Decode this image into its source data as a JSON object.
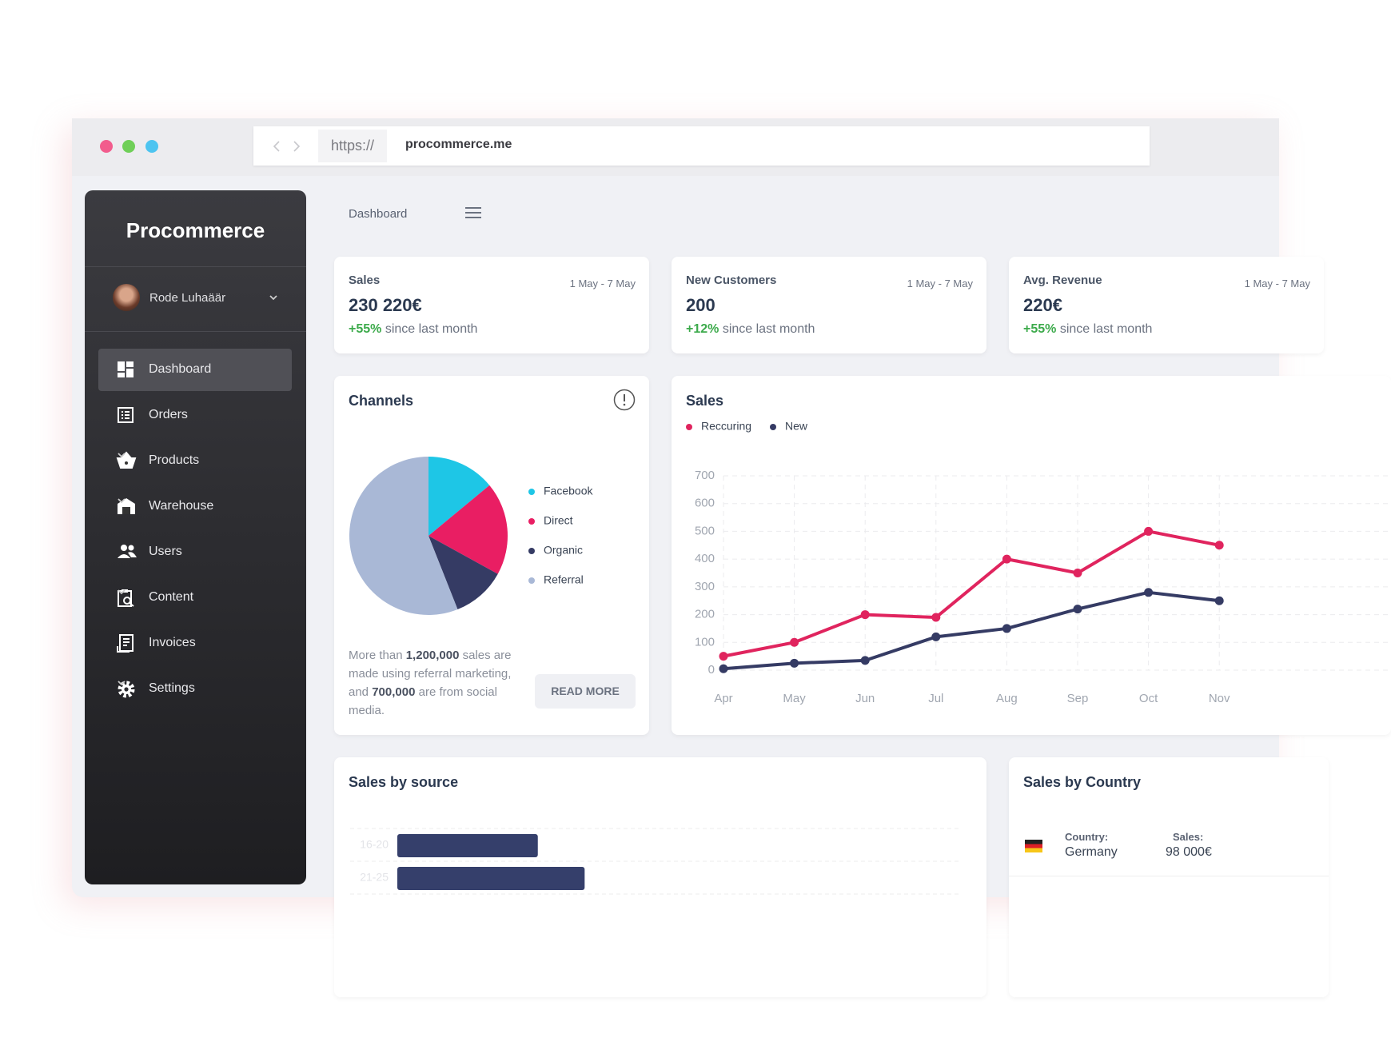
{
  "browser": {
    "protocol": "https://",
    "url": "procommerce.me"
  },
  "sidebar": {
    "brand": "Procommerce",
    "user": "Rode Luhaäär",
    "menu": [
      "Dashboard",
      "Orders",
      "Products",
      "Warehouse",
      "Users",
      "Content",
      "Invoices",
      "Settings"
    ]
  },
  "header": {
    "breadcrumb": "Dashboard"
  },
  "stats": [
    {
      "label": "Sales",
      "date": "1 May - 7 May",
      "value": "230 220€",
      "change": "+55%",
      "note": "since last month"
    },
    {
      "label": "New Customers",
      "date": "1 May - 7 May",
      "value": "200",
      "change": "+12%",
      "note": "since last month"
    },
    {
      "label": "Avg. Revenue",
      "date": "1 May - 7 May",
      "value": "220€",
      "change": "+55%",
      "note": "since last month"
    }
  ],
  "channels_text": {
    "parts": [
      "More than ",
      "1,200,000",
      " sales are made using referral marketing, and ",
      "700,000",
      " are from social media."
    ],
    "button": "READ MORE"
  },
  "country": {
    "title": "Sales by Country",
    "country_label": "Country:",
    "sales_label": "Sales:",
    "rows": [
      {
        "country": "Germany",
        "sales": "98 000€"
      }
    ]
  },
  "chart_data": [
    {
      "type": "pie",
      "title": "Channels",
      "categories": [
        "Facebook",
        "Direct",
        "Organic",
        "Referral"
      ],
      "values": [
        14,
        19,
        11,
        56
      ],
      "colors": [
        "#1ec6e6",
        "#e91e63",
        "#353b64",
        "#a9b8d6"
      ]
    },
    {
      "type": "line",
      "title": "Sales",
      "categories": [
        "Apr",
        "May",
        "Jun",
        "Jul",
        "Aug",
        "Sep",
        "Oct",
        "Nov"
      ],
      "series": [
        {
          "name": "Reccuring",
          "color": "#e0245e",
          "values": [
            50,
            100,
            200,
            190,
            400,
            350,
            500,
            450
          ]
        },
        {
          "name": "New",
          "color": "#353b64",
          "values": [
            5,
            25,
            35,
            120,
            150,
            220,
            280,
            250
          ]
        }
      ],
      "ylim": [
        0,
        700
      ],
      "yticks": [
        0,
        100,
        200,
        300,
        400,
        500,
        600,
        700
      ],
      "grid": true
    },
    {
      "type": "hbar",
      "title": "Sales by source",
      "categories": [
        "16-20",
        "21-25"
      ],
      "values": [
        30,
        40
      ],
      "xlim": [
        0,
        120
      ],
      "color": "#353f6b"
    }
  ]
}
